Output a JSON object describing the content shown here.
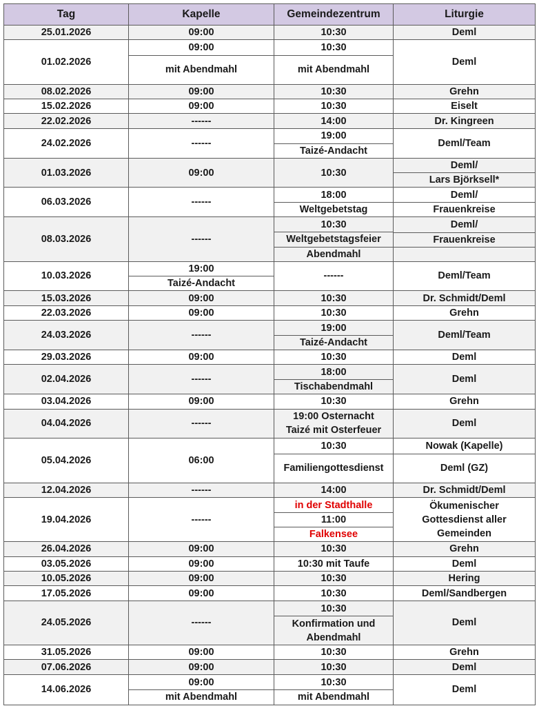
{
  "header": [
    "Tag",
    "Kapelle",
    "Gemeindezentrum",
    "Liturgie"
  ],
  "colors": {
    "header_bg": "#d3c9e3",
    "alt_row_bg": "#f1f1f1",
    "highlight_text": "#e00000"
  },
  "rows": [
    {
      "tag": "25.01.2026",
      "kapelle": [
        "09:00"
      ],
      "gz": [
        "10:30"
      ],
      "liturgie": [
        "Deml"
      ]
    },
    {
      "tag": "01.02.2026",
      "kapelle": [
        "09:00",
        "mit Abendmahl"
      ],
      "gz": [
        "10:30",
        "mit Abendmahl"
      ],
      "liturgie": [
        "Deml"
      ]
    },
    {
      "tag": "08.02.2026",
      "kapelle": [
        "09:00"
      ],
      "gz": [
        "10:30"
      ],
      "liturgie": [
        "Grehn"
      ]
    },
    {
      "tag": "15.02.2026",
      "kapelle": [
        "09:00"
      ],
      "gz": [
        "10:30"
      ],
      "liturgie": [
        "Eiselt"
      ]
    },
    {
      "tag": "22.02.2026",
      "kapelle": [
        "------"
      ],
      "gz": [
        "14:00"
      ],
      "liturgie": [
        "Dr. Kingreen"
      ]
    },
    {
      "tag": "24.02.2026",
      "kapelle": [
        "------"
      ],
      "gz": [
        "19:00",
        "Taizé-Andacht"
      ],
      "liturgie": [
        "Deml/Team"
      ]
    },
    {
      "tag": "01.03.2026",
      "kapelle": [
        "09:00"
      ],
      "gz": [
        "10:30"
      ],
      "liturgie": [
        "Deml/",
        "Lars Björksell*"
      ]
    },
    {
      "tag": "06.03.2026",
      "kapelle": [
        "------"
      ],
      "gz": [
        "18:00",
        "Weltgebetstag"
      ],
      "liturgie": [
        "Deml/",
        "Frauenkreise"
      ]
    },
    {
      "tag": "08.03.2026",
      "kapelle": [
        "------"
      ],
      "gz": [
        "10:30",
        "Weltgebetstagsfeier",
        "Abendmahl"
      ],
      "liturgie": [
        "Deml/",
        "Frauenkreise",
        ""
      ]
    },
    {
      "tag": "10.03.2026",
      "kapelle": [
        "19:00",
        "Taizé-Andacht"
      ],
      "gz": [
        "------"
      ],
      "liturgie": [
        "Deml/Team"
      ]
    },
    {
      "tag": "15.03.2026",
      "kapelle": [
        "09:00"
      ],
      "gz": [
        "10:30"
      ],
      "liturgie": [
        "Dr. Schmidt/Deml"
      ]
    },
    {
      "tag": "22.03.2026",
      "kapelle": [
        "09:00"
      ],
      "gz": [
        "10:30"
      ],
      "liturgie": [
        "Grehn"
      ]
    },
    {
      "tag": "24.03.2026",
      "kapelle": [
        "------"
      ],
      "gz": [
        "19:00",
        "Taizé-Andacht"
      ],
      "liturgie": [
        "Deml/Team"
      ]
    },
    {
      "tag": "29.03.2026",
      "kapelle": [
        "09:00"
      ],
      "gz": [
        "10:30"
      ],
      "liturgie": [
        "Deml"
      ]
    },
    {
      "tag": "02.04.2026",
      "kapelle": [
        "------"
      ],
      "gz": [
        "18:00",
        "Tischabendmahl"
      ],
      "liturgie": [
        "Deml"
      ]
    },
    {
      "tag": "03.04.2026",
      "kapelle": [
        "09:00"
      ],
      "gz": [
        "10:30"
      ],
      "liturgie": [
        "Grehn"
      ]
    },
    {
      "tag": "04.04.2026",
      "kapelle": [
        "------"
      ],
      "gz": [
        "19:00 Osternacht\nTaizé mit Osterfeuer"
      ],
      "liturgie": [
        "Deml"
      ]
    },
    {
      "tag": "05.04.2026",
      "kapelle": [
        "06:00"
      ],
      "gz": [
        "10:30",
        "Familiengottesdienst"
      ],
      "liturgie": [
        "Nowak (Kapelle)",
        "Deml (GZ)"
      ]
    },
    {
      "tag": "12.04.2026",
      "kapelle": [
        "------"
      ],
      "gz": [
        "14:00"
      ],
      "liturgie": [
        "Dr. Schmidt/Deml"
      ]
    },
    {
      "tag": "19.04.2026",
      "kapelle": [
        "------"
      ],
      "gz": [
        "in der Stadthalle",
        "11:00",
        "Falkensee"
      ],
      "gz_red": [
        true,
        false,
        true
      ],
      "liturgie": [
        "Ökumenischer\nGottesdienst aller\nGemeinden"
      ]
    },
    {
      "tag": "26.04.2026",
      "kapelle": [
        "09:00"
      ],
      "gz": [
        "10:30"
      ],
      "liturgie": [
        "Grehn"
      ]
    },
    {
      "tag": "03.05.2026",
      "kapelle": [
        "09:00"
      ],
      "gz": [
        "10:30 mit Taufe"
      ],
      "liturgie": [
        "Deml"
      ]
    },
    {
      "tag": "10.05.2026",
      "kapelle": [
        "09:00"
      ],
      "gz": [
        "10:30"
      ],
      "liturgie": [
        "Hering"
      ]
    },
    {
      "tag": "17.05.2026",
      "kapelle": [
        "09:00"
      ],
      "gz": [
        "10:30"
      ],
      "liturgie": [
        "Deml/Sandbergen"
      ]
    },
    {
      "tag": "24.05.2026",
      "kapelle": [
        "------"
      ],
      "gz": [
        "10:30",
        "Konfirmation und\nAbendmahl"
      ],
      "liturgie": [
        "Deml"
      ]
    },
    {
      "tag": "31.05.2026",
      "kapelle": [
        "09:00"
      ],
      "gz": [
        "10:30"
      ],
      "liturgie": [
        "Grehn"
      ]
    },
    {
      "tag": "07.06.2026",
      "kapelle": [
        "09:00"
      ],
      "gz": [
        "10:30"
      ],
      "liturgie": [
        "Deml"
      ]
    },
    {
      "tag": "14.06.2026",
      "kapelle": [
        "09:00",
        "mit Abendmahl"
      ],
      "gz": [
        "10:30",
        "mit Abendmahl"
      ],
      "liturgie": [
        "Deml"
      ]
    }
  ]
}
